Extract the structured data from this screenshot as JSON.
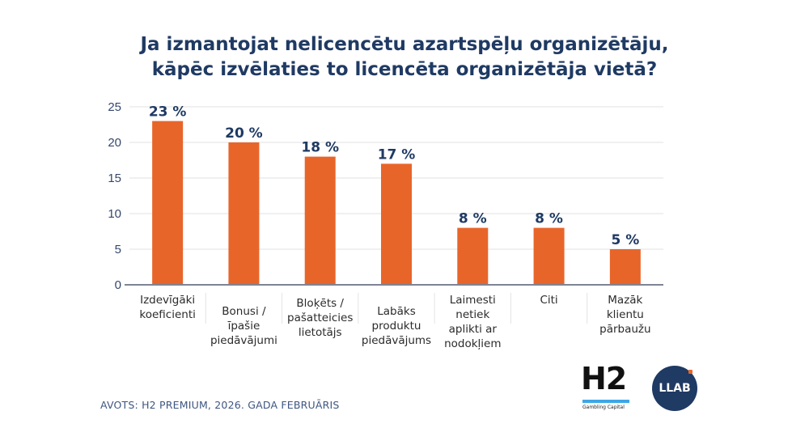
{
  "chart_data": {
    "type": "bar",
    "title": "Ja izmantojat nelicencētu azartspēļu organizētāju, kāpēc izvēlaties to licencēta organizētāja vietā?",
    "title_lines": [
      "Ja izmantojat nelicencētu azartspēļu organizētāju,",
      "kāpēc izvēlaties to licencēta organizētāja vietā?"
    ],
    "categories": [
      "Izdevīgāki koeficienti",
      "Bonusi / īpašie piedāvājumi",
      "Bloķēts / pašatteicies lietotājs",
      "Labāks produktu piedāvājums",
      "Laimesti netiek aplikti ar nodokļiem",
      "Citi",
      "Mazāk klientu pārbaužu"
    ],
    "category_lines": [
      [
        "Izdevīgāki",
        "koeficienti"
      ],
      [
        "Bonusi /",
        "īpašie",
        "piedāvājumi"
      ],
      [
        "Bloķēts /",
        "pašatteicies",
        "lietotājs"
      ],
      [
        "Labāks",
        "produktu",
        "piedāvājums"
      ],
      [
        "Laimesti",
        "netiek",
        "aplikti ar",
        "nodokļiem"
      ],
      [
        "Citi"
      ],
      [
        "Mazāk",
        "klientu",
        "pārbaužu"
      ]
    ],
    "values": [
      23,
      20,
      18,
      17,
      8,
      8,
      5
    ],
    "data_labels": [
      "23 %",
      "20 %",
      "18 %",
      "17 %",
      "8 %",
      "8 %",
      "5 %"
    ],
    "xlabel": "",
    "ylabel": "",
    "ylim": [
      0,
      25
    ],
    "yticks": [
      0,
      5,
      10,
      15,
      20,
      25
    ],
    "grid": true,
    "legend": "none",
    "bar_color": "#e8652a",
    "label_color": "#1f3a63"
  },
  "source": "AVOTS: H2 PREMIUM, 2026. GADA FEBRUĀRIS",
  "logos": {
    "h2": {
      "mark": "H2",
      "subtitle": "Gambling Capital"
    },
    "llab": {
      "mark": "LLAB"
    }
  }
}
